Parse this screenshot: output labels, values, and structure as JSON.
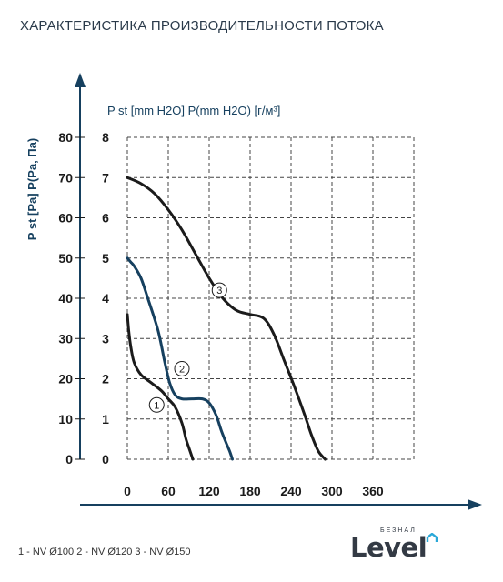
{
  "page": {
    "title": "ХАРАКТЕРИСТИКА ПРОИЗВОДИТЕЛЬНОСТИ ПОТОКА",
    "footer_legend": "1 - NV Ø100  2 - NV Ø120  3 - NV Ø150"
  },
  "logo": {
    "main": "Level",
    "sub": "БЕЗНАЛ",
    "accent_color": "#2aa8d8"
  },
  "colors": {
    "series_dark": "#1b1b1b",
    "series_blue": "#16405f",
    "axis_label": "#16405f",
    "grid": "#444444"
  },
  "chart_data": {
    "type": "line",
    "ylabel_left": "P st [Pa] P(Pa, Па)",
    "ylabel_right": "P st [mm H2O] P(mm H2O) [г/м³]",
    "xlim": [
      0,
      420
    ],
    "ylim_pa": [
      0,
      80
    ],
    "ylim_mm": [
      0,
      8
    ],
    "x_ticks": [
      "0",
      "60",
      "120",
      "180",
      "240",
      "300",
      "360"
    ],
    "y_ticks_pa": [
      "0",
      "10",
      "20",
      "30",
      "40",
      "50",
      "60",
      "70",
      "80"
    ],
    "y_ticks_mm": [
      "0",
      "1",
      "2",
      "3",
      "4",
      "5",
      "6",
      "7",
      "8"
    ],
    "grid": true,
    "series": [
      {
        "marker": "1",
        "color": "#1b1b1b",
        "x": [
          0,
          2,
          5,
          10,
          20,
          35,
          50,
          60,
          70,
          80,
          86,
          90,
          94,
          96
        ],
        "y": [
          36,
          32,
          28,
          24,
          21,
          19,
          17,
          15,
          13,
          9,
          5,
          3,
          1,
          0
        ]
      },
      {
        "marker": "2",
        "color": "#16405f",
        "x": [
          0,
          5,
          10,
          20,
          30,
          45,
          55,
          62,
          70,
          80,
          95,
          110,
          120,
          130,
          138,
          145,
          150,
          154
        ],
        "y": [
          50,
          49,
          48,
          45,
          40,
          32,
          24,
          19,
          16,
          15,
          15,
          15,
          14,
          11,
          7,
          4,
          2,
          0
        ]
      },
      {
        "marker": "3",
        "color": "#1b1b1b",
        "x": [
          0,
          20,
          40,
          60,
          80,
          100,
          120,
          140,
          160,
          180,
          200,
          215,
          230,
          245,
          260,
          270,
          280,
          290
        ],
        "y": [
          70,
          68.5,
          66,
          62,
          57,
          51,
          45,
          40,
          37,
          36,
          35,
          31,
          24.5,
          18,
          11,
          6,
          2,
          0
        ]
      }
    ],
    "markers": [
      {
        "label": "1",
        "x": 43,
        "y": 13.5
      },
      {
        "label": "2",
        "x": 80,
        "y": 22.5
      },
      {
        "label": "3",
        "x": 135,
        "y": 42
      }
    ]
  }
}
